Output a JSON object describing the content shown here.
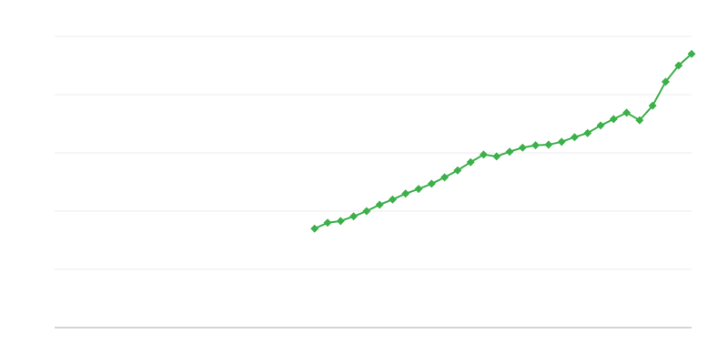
{
  "chart_data": {
    "type": "line",
    "categories": [
      null,
      null,
      null,
      null,
      null,
      null,
      null,
      null,
      null,
      null,
      null,
      null,
      null,
      null,
      null,
      null,
      null,
      null,
      null,
      null,
      null,
      null,
      null,
      null,
      null,
      null,
      null,
      null,
      null,
      null,
      null,
      null,
      null,
      null,
      null,
      null,
      null,
      null,
      null,
      null,
      null,
      null,
      null,
      null,
      null,
      null,
      null,
      null,
      null,
      null
    ],
    "series": [
      {
        "color": "#3cb04a",
        "values": [
          null,
          null,
          null,
          null,
          null,
          null,
          null,
          null,
          null,
          null,
          null,
          null,
          null,
          null,
          null,
          null,
          null,
          null,
          null,
          null,
          1.7,
          1.8,
          1.83,
          1.91,
          2.0,
          2.11,
          2.2,
          2.3,
          2.38,
          2.47,
          2.58,
          2.7,
          2.84,
          2.97,
          2.94,
          3.02,
          3.09,
          3.13,
          3.14,
          3.19,
          3.27,
          3.34,
          3.47,
          3.58,
          3.69,
          3.56,
          3.81,
          4.22,
          4.5,
          4.7
        ]
      }
    ],
    "ylim": [
      0,
      5
    ],
    "yticks": [
      0,
      1,
      2,
      3,
      4,
      5
    ],
    "grid": true
  }
}
